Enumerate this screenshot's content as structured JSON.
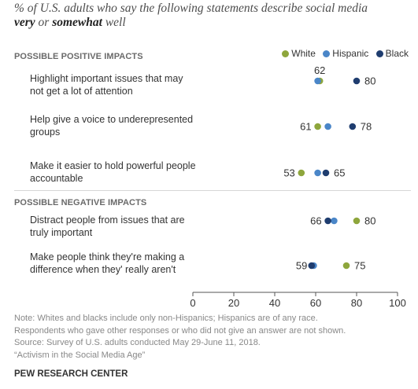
{
  "subtitle": {
    "part1": "% of U.S. adults who say the following statements describe social media",
    "very": "very",
    "or": " or ",
    "somewhat": "somewhat",
    "well": " well"
  },
  "legend": [
    {
      "name": "White",
      "color": "#8ea63c"
    },
    {
      "name": "Hispanic",
      "color": "#4a86c8"
    },
    {
      "name": "Black",
      "color": "#1f3d6f"
    }
  ],
  "sections": [
    "POSSIBLE POSITIVE IMPACTS",
    "POSSIBLE NEGATIVE IMPACTS"
  ],
  "chart_data": {
    "type": "scatter",
    "categories": [
      "Highlight important issues that may not get a lot of attention",
      "Help give a voice to underepresented groups",
      "Make it easier to hold powerful people accountable",
      "Distract people from issues that are truly important",
      "Make people think they're making a difference when they' really aren't"
    ],
    "series": [
      {
        "name": "White",
        "color": "#8ea63c",
        "values": [
          62,
          61,
          53,
          80,
          75
        ]
      },
      {
        "name": "Hispanic",
        "color": "#4a86c8",
        "values": [
          61,
          66,
          61,
          69,
          59
        ]
      },
      {
        "name": "Black",
        "color": "#1f3d6f",
        "values": [
          80,
          78,
          65,
          66,
          58
        ]
      }
    ],
    "value_labels": [
      {
        "row": 0,
        "text": "62",
        "series": "White",
        "side": "above"
      },
      {
        "row": 0,
        "text": "80",
        "series": "Black",
        "side": "right"
      },
      {
        "row": 1,
        "text": "61",
        "series": "White",
        "side": "left"
      },
      {
        "row": 1,
        "text": "78",
        "series": "Black",
        "side": "right"
      },
      {
        "row": 2,
        "text": "53",
        "series": "White",
        "side": "left"
      },
      {
        "row": 2,
        "text": "65",
        "series": "Black",
        "side": "right"
      },
      {
        "row": 3,
        "text": "66",
        "series": "Black",
        "side": "left"
      },
      {
        "row": 3,
        "text": "80",
        "series": "White",
        "side": "right"
      },
      {
        "row": 4,
        "text": "59",
        "series": "Hispanic",
        "side": "left"
      },
      {
        "row": 4,
        "text": "75",
        "series": "White",
        "side": "right"
      }
    ],
    "xlim": [
      0,
      100
    ],
    "xticks": [
      0,
      20,
      40,
      60,
      80,
      100
    ],
    "xlabel": "",
    "ylabel": "",
    "grid": false,
    "legend_position": "top-right"
  },
  "note": {
    "line1": "Note: Whites and blacks include only non-Hispanics; Hispanics are of any race.",
    "line2": "Respondents who gave other responses or who did not give an answer are not shown.",
    "line3": "Source: Survey of U.S. adults conducted May 29-June 11, 2018.",
    "line4": "“Activism in the Social Media Age”"
  },
  "org": "PEW RESEARCH CENTER"
}
